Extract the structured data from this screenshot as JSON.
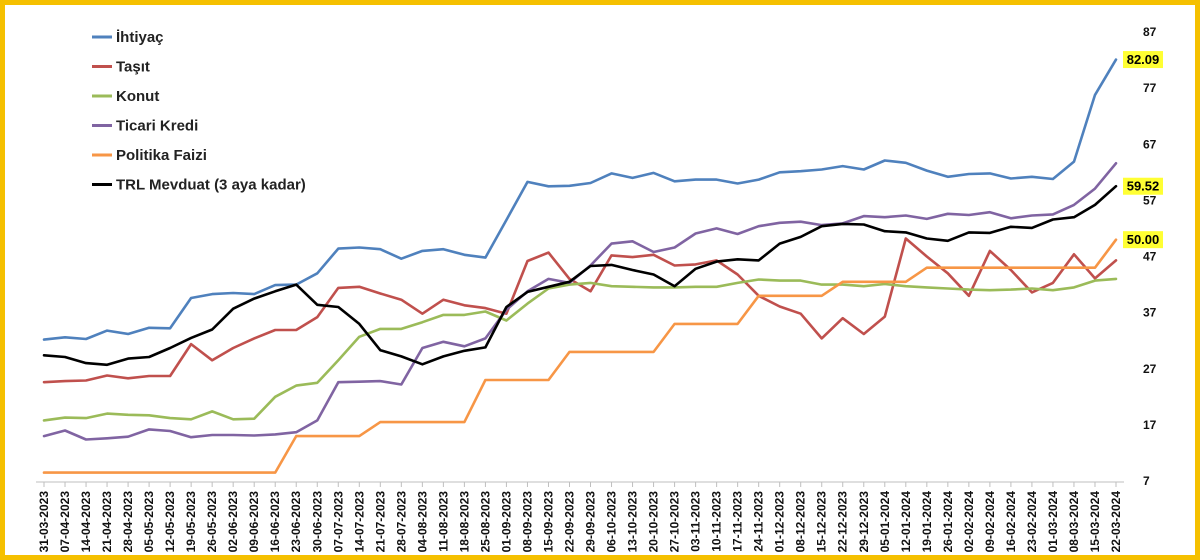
{
  "chart_data": {
    "type": "line",
    "title": "",
    "xlabel": "",
    "ylabel": "",
    "ylim": [
      7,
      87
    ],
    "yticks": [
      7,
      17,
      27,
      37,
      47,
      57,
      67,
      77,
      87
    ],
    "y_axis_side": "right",
    "grid": false,
    "legend_position": "top-left",
    "highlight_color": "#FFFF33",
    "x": [
      "31-03-2023",
      "07-04-2023",
      "14-04-2023",
      "21-04-2023",
      "28-04-2023",
      "05-05-2023",
      "12-05-2023",
      "19-05-2023",
      "26-05-2023",
      "02-06-2023",
      "09-06-2023",
      "16-06-2023",
      "23-06-2023",
      "30-06-2023",
      "07-07-2023",
      "14-07-2023",
      "21-07-2023",
      "28-07-2023",
      "04-08-2023",
      "11-08-2023",
      "18-08-2023",
      "25-08-2023",
      "01-09-2023",
      "08-09-2023",
      "15-09-2023",
      "22-09-2023",
      "29-09-2023",
      "06-10-2023",
      "13-10-2023",
      "20-10-2023",
      "27-10-2023",
      "03-11-2023",
      "10-11-2023",
      "17-11-2023",
      "24-11-2023",
      "01-12-2023",
      "08-12-2023",
      "15-12-2023",
      "22-12-2023",
      "29-12-2023",
      "05-01-2024",
      "12-01-2024",
      "19-01-2024",
      "26-01-2024",
      "02-02-2024",
      "09-02-2024",
      "16-02-2024",
      "23-02-2024",
      "01-03-2024",
      "08-03-2024",
      "15-03-2024",
      "22-03-2024"
    ],
    "series": [
      {
        "name": "İhtiyaç",
        "color": "#4F81BD",
        "values": [
          32.2,
          32.6,
          32.3,
          33.8,
          33.2,
          34.3,
          34.2,
          39.6,
          40.3,
          40.5,
          40.3,
          41.9,
          42.0,
          44.0,
          48.4,
          48.6,
          48.3,
          46.6,
          48.0,
          48.3,
          47.3,
          46.8,
          53.5,
          60.3,
          59.5,
          59.6,
          60.1,
          61.8,
          61.0,
          61.9,
          60.4,
          60.7,
          60.7,
          60.0,
          60.7,
          62.0,
          62.2,
          62.5,
          63.1,
          62.5,
          64.1,
          63.7,
          62.3,
          61.2,
          61.7,
          61.8,
          60.9,
          61.2,
          60.8,
          63.9,
          75.8,
          82.09
        ]
      },
      {
        "name": "Taşıt",
        "color": "#C0504D",
        "values": [
          24.6,
          24.8,
          24.9,
          25.8,
          25.3,
          25.7,
          25.7,
          31.4,
          28.5,
          30.7,
          32.4,
          33.9,
          33.9,
          36.2,
          41.4,
          41.6,
          40.4,
          39.3,
          36.8,
          39.3,
          38.3,
          37.8,
          36.8,
          46.2,
          47.7,
          43.0,
          40.8,
          47.2,
          46.9,
          47.3,
          45.4,
          45.6,
          46.3,
          43.8,
          40.0,
          38.1,
          36.8,
          32.4,
          36.0,
          33.2,
          36.3,
          50.2,
          47.0,
          44.0,
          40.0,
          48.0,
          44.6,
          40.6,
          42.3,
          47.4,
          43.1,
          46.3
        ]
      },
      {
        "name": "Konut",
        "color": "#9BBB59",
        "values": [
          17.8,
          18.3,
          18.2,
          19.0,
          18.8,
          18.7,
          18.2,
          18.0,
          19.4,
          18.0,
          18.1,
          22.0,
          24.0,
          24.5,
          28.5,
          32.7,
          34.1,
          34.1,
          35.3,
          36.6,
          36.6,
          37.2,
          35.6,
          38.6,
          41.3,
          42.0,
          42.3,
          41.7,
          41.6,
          41.5,
          41.5,
          41.6,
          41.6,
          42.3,
          42.9,
          42.7,
          42.7,
          42.0,
          42.0,
          41.7,
          42.1,
          41.7,
          41.5,
          41.3,
          41.1,
          41.0,
          41.1,
          41.3,
          41.0,
          41.5,
          42.7,
          43.0
        ]
      },
      {
        "name": "Ticari Kredi",
        "color": "#8064A2",
        "values": [
          15.0,
          16.0,
          14.4,
          14.6,
          14.9,
          16.2,
          15.9,
          14.8,
          15.2,
          15.2,
          15.1,
          15.3,
          15.7,
          17.8,
          24.6,
          24.7,
          24.8,
          24.2,
          30.7,
          31.8,
          31.0,
          32.4,
          37.5,
          40.8,
          43.0,
          42.3,
          45.4,
          49.3,
          49.7,
          47.8,
          48.6,
          51.1,
          52.0,
          51.0,
          52.4,
          53.0,
          53.2,
          52.6,
          52.9,
          54.2,
          54.0,
          54.3,
          53.7,
          54.6,
          54.4,
          54.9,
          53.8,
          54.3,
          54.5,
          56.2,
          59.1,
          63.6
        ]
      },
      {
        "name": "Politika Faizi",
        "color": "#F79646",
        "values": [
          8.5,
          8.5,
          8.5,
          8.5,
          8.5,
          8.5,
          8.5,
          8.5,
          8.5,
          8.5,
          8.5,
          8.5,
          15.0,
          15.0,
          15.0,
          15.0,
          17.5,
          17.5,
          17.5,
          17.5,
          17.5,
          25.0,
          25.0,
          25.0,
          25.0,
          30.0,
          30.0,
          30.0,
          30.0,
          30.0,
          35.0,
          35.0,
          35.0,
          35.0,
          40.0,
          40.0,
          40.0,
          40.0,
          42.5,
          42.5,
          42.5,
          42.5,
          45.0,
          45.0,
          45.0,
          45.0,
          45.0,
          45.0,
          45.0,
          45.0,
          45.0,
          50.0
        ]
      },
      {
        "name": "TRL Mevduat (3 aya kadar)",
        "color": "#000000",
        "values": [
          29.4,
          29.1,
          28.0,
          27.7,
          28.8,
          29.1,
          30.7,
          32.5,
          34.0,
          37.7,
          39.5,
          40.8,
          42.0,
          38.4,
          38.0,
          35.0,
          30.3,
          29.2,
          27.8,
          29.2,
          30.2,
          30.8,
          38.0,
          40.7,
          41.6,
          42.5,
          45.3,
          45.5,
          44.6,
          43.8,
          41.7,
          44.8,
          46.1,
          46.5,
          46.3,
          49.3,
          50.5,
          52.4,
          52.8,
          52.7,
          51.5,
          51.3,
          50.2,
          49.8,
          51.3,
          51.2,
          52.3,
          52.1,
          53.6,
          54.0,
          56.2,
          59.52
        ]
      }
    ],
    "end_labels": [
      {
        "series": "İhtiyaç",
        "text": "82.09"
      },
      {
        "series": "TRL Mevduat (3 aya kadar)",
        "text": "59.52"
      },
      {
        "series": "Politika Faizi",
        "text": "50.00"
      }
    ]
  }
}
